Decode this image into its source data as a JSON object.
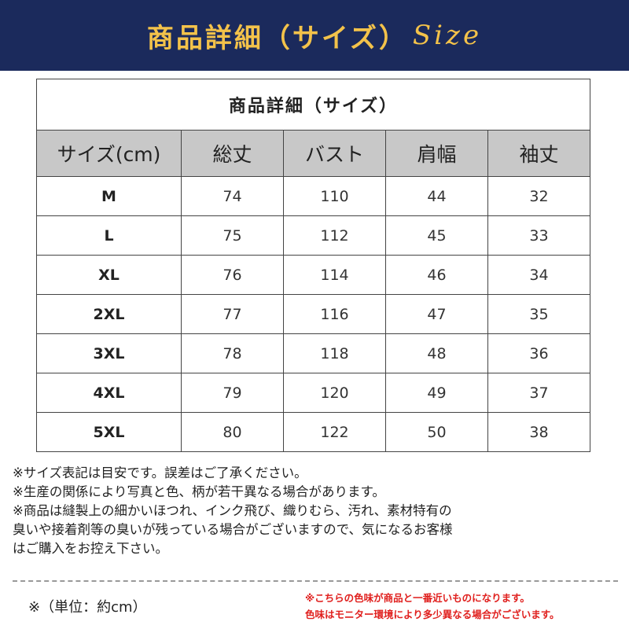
{
  "banner": {
    "title": "商品詳細（サイズ）",
    "script": "Size"
  },
  "table": {
    "caption": "商品詳細（サイズ）",
    "headers": [
      "サイズ(cm)",
      "総丈",
      "バスト",
      "肩幅",
      "袖丈"
    ],
    "rows": [
      [
        "M",
        "74",
        "110",
        "44",
        "32"
      ],
      [
        "L",
        "75",
        "112",
        "45",
        "33"
      ],
      [
        "XL",
        "76",
        "114",
        "46",
        "34"
      ],
      [
        "2XL",
        "77",
        "116",
        "47",
        "35"
      ],
      [
        "3XL",
        "78",
        "118",
        "48",
        "36"
      ],
      [
        "4XL",
        "79",
        "120",
        "49",
        "37"
      ],
      [
        "5XL",
        "80",
        "122",
        "50",
        "38"
      ]
    ]
  },
  "notes": [
    "※サイズ表記は目安です。誤差はご了承ください。",
    "※生産の関係により写真と色、柄が若干異なる場合があります。",
    "※商品は縫製上の細かいほつれ、インク飛び、織りむら、汚れ、素材特有の",
    "臭いや接着剤等の臭いが残っている場合がございますので、気になるお客様",
    "はご購入をお控え下さい。"
  ],
  "unit": "※（単位：約cm）",
  "color_note": [
    "※こちらの色味が商品と一番近いものになります。",
    "色味はモニター環境により多少異なる場合がございます。"
  ],
  "colors": {
    "banner_bg": "#1b2a5c",
    "banner_text": "#f3c24a",
    "header_bg": "#c8c8c8",
    "note_red": "#e0201e"
  }
}
